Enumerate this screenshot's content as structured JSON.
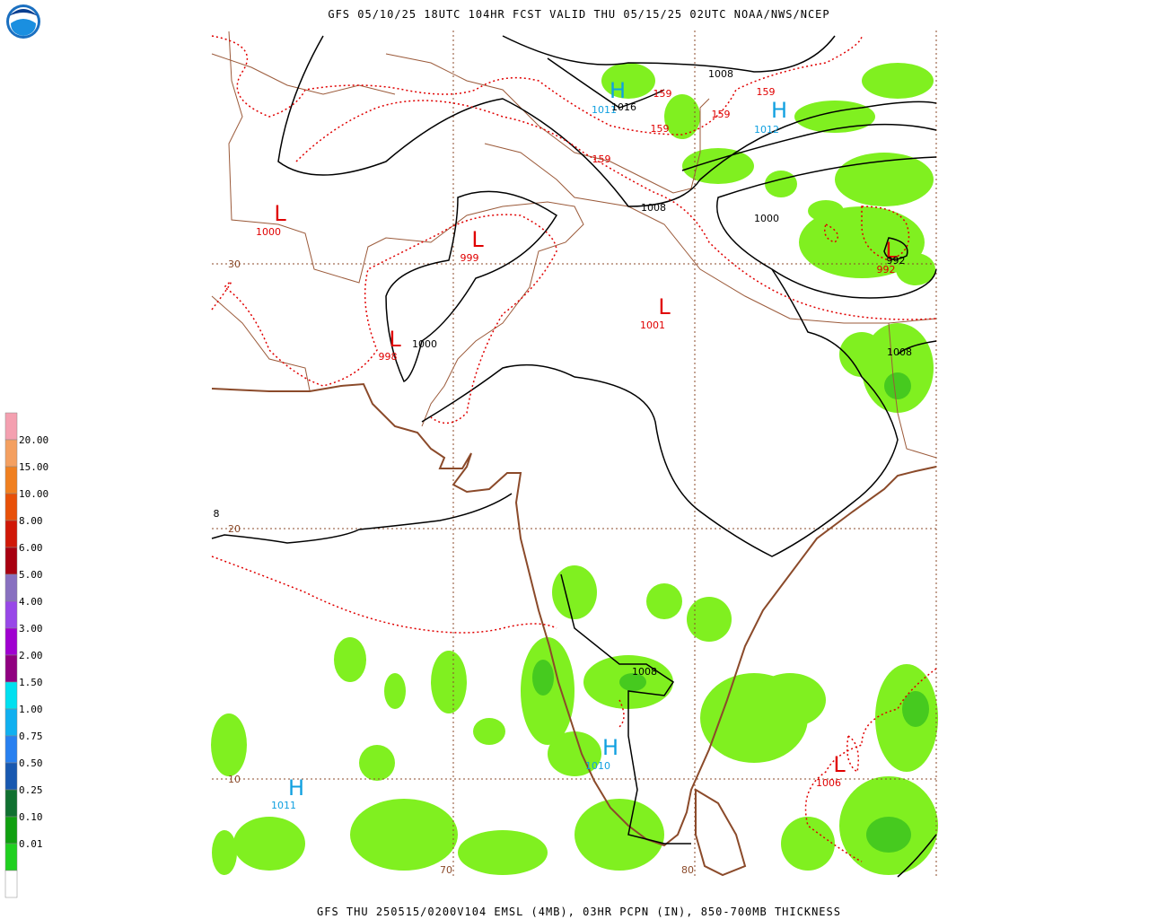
{
  "header": {
    "title": "GFS 05/10/25 18UTC 104HR FCST VALID THU 05/15/25 02UTC NOAA/NWS/NCEP"
  },
  "footer": {
    "caption": "GFS THU 250515/0200V104 EMSL (4MB), 03HR PCPN (IN), 850-700MB THICKNESS"
  },
  "legend": {
    "labels": [
      "20.00",
      "15.00",
      "10.00",
      "8.00",
      "6.00",
      "5.00",
      "4.00",
      "3.00",
      "2.00",
      "1.50",
      "1.00",
      "0.75",
      "0.50",
      "0.25",
      "0.10",
      "0.01"
    ],
    "colors": [
      "#f4a0b0",
      "#f4a060",
      "#f08020",
      "#e85008",
      "#d01808",
      "#a80010",
      "#8870c0",
      "#9848e8",
      "#a000d0",
      "#900080",
      "#00e0f0",
      "#10b0f0",
      "#2880f0",
      "#1858b0",
      "#107030",
      "#10a010",
      "#20d020"
    ]
  },
  "map": {
    "centers": [
      {
        "symbol": "L",
        "value": 1000
      },
      {
        "symbol": "L",
        "value": 999
      },
      {
        "symbol": "L",
        "value": 998
      },
      {
        "symbol": "L",
        "value": 1001
      },
      {
        "symbol": "H",
        "value": 1011
      },
      {
        "symbol": "H",
        "value": 1012
      },
      {
        "symbol": "L",
        "value": 992
      },
      {
        "symbol": "H",
        "value": 1010
      },
      {
        "symbol": "H",
        "value": 1011
      },
      {
        "symbol": "L",
        "value": 1006
      }
    ],
    "isobar_labels": [
      1008,
      1016,
      1008,
      1000,
      992,
      1000,
      1008,
      1008,
      8
    ],
    "thickness_labels": [
      159,
      159,
      159,
      159,
      159
    ],
    "lat_labels": [
      30,
      20,
      10
    ],
    "lon_labels": [
      70,
      80
    ]
  }
}
